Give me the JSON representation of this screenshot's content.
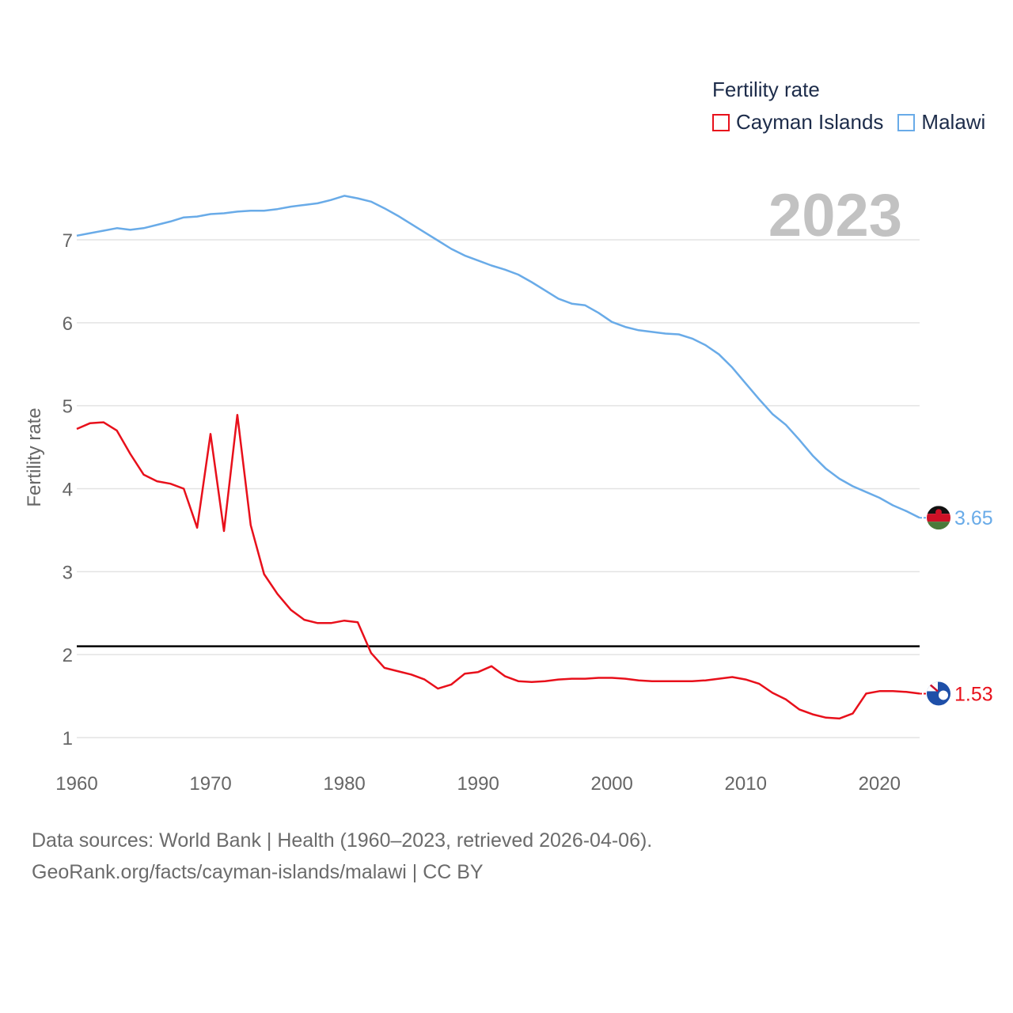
{
  "legend": {
    "title": "Fertility rate",
    "items": [
      {
        "label": "Cayman Islands",
        "color": "#e8101b"
      },
      {
        "label": "Malawi",
        "color": "#69abe8"
      }
    ]
  },
  "source": {
    "line1": "Data sources: World Bank | Health (1960–2023, retrieved 2026-04-06).",
    "line2": "GeoRank.org/facts/cayman-islands/malawi | CC BY"
  },
  "chart_data": {
    "type": "line",
    "ylabel": "Fertility rate",
    "year_label": "2023",
    "ylim": [
      0.9,
      7.6
    ],
    "xlim": [
      1960,
      2023
    ],
    "x_ticks": [
      1960,
      1970,
      1980,
      1990,
      2000,
      2010,
      2020
    ],
    "y_ticks": [
      1,
      2,
      3,
      4,
      5,
      6,
      7
    ],
    "reference_line": 2.1,
    "x": [
      1960,
      1961,
      1962,
      1963,
      1964,
      1965,
      1966,
      1967,
      1968,
      1969,
      1970,
      1971,
      1972,
      1973,
      1974,
      1975,
      1976,
      1977,
      1978,
      1979,
      1980,
      1981,
      1982,
      1983,
      1984,
      1985,
      1986,
      1987,
      1988,
      1989,
      1990,
      1991,
      1992,
      1993,
      1994,
      1995,
      1996,
      1997,
      1998,
      1999,
      2000,
      2001,
      2002,
      2003,
      2004,
      2005,
      2006,
      2007,
      2008,
      2009,
      2010,
      2011,
      2012,
      2013,
      2014,
      2015,
      2016,
      2017,
      2018,
      2019,
      2020,
      2021,
      2022,
      2023
    ],
    "series": [
      {
        "name": "Malawi",
        "color": "#69abe8",
        "end_label": "3.65",
        "values": [
          7.05,
          7.08,
          7.11,
          7.14,
          7.12,
          7.14,
          7.18,
          7.22,
          7.27,
          7.28,
          7.31,
          7.32,
          7.34,
          7.35,
          7.35,
          7.37,
          7.4,
          7.42,
          7.44,
          7.48,
          7.53,
          7.5,
          7.46,
          7.38,
          7.29,
          7.19,
          7.09,
          6.99,
          6.89,
          6.81,
          6.75,
          6.69,
          6.64,
          6.58,
          6.49,
          6.39,
          6.29,
          6.23,
          6.21,
          6.12,
          6.01,
          5.95,
          5.91,
          5.89,
          5.87,
          5.86,
          5.81,
          5.73,
          5.62,
          5.46,
          5.27,
          5.08,
          4.9,
          4.77,
          4.59,
          4.4,
          4.24,
          4.12,
          4.03,
          3.96,
          3.89,
          3.8,
          3.73,
          3.65
        ]
      },
      {
        "name": "Cayman Islands",
        "color": "#e8101b",
        "end_label": "1.53",
        "values": [
          4.72,
          4.79,
          4.8,
          4.7,
          4.42,
          4.17,
          4.09,
          4.06,
          4.0,
          3.53,
          4.66,
          3.49,
          4.89,
          3.56,
          2.97,
          2.73,
          2.54,
          2.42,
          2.38,
          2.38,
          2.41,
          2.39,
          2.02,
          1.84,
          1.8,
          1.76,
          1.7,
          1.59,
          1.64,
          1.77,
          1.79,
          1.86,
          1.74,
          1.68,
          1.67,
          1.68,
          1.7,
          1.71,
          1.71,
          1.72,
          1.72,
          1.71,
          1.69,
          1.68,
          1.68,
          1.68,
          1.68,
          1.69,
          1.71,
          1.73,
          1.7,
          1.65,
          1.54,
          1.46,
          1.34,
          1.28,
          1.24,
          1.23,
          1.29,
          1.53,
          1.56,
          1.56,
          1.55,
          1.53
        ]
      }
    ]
  }
}
